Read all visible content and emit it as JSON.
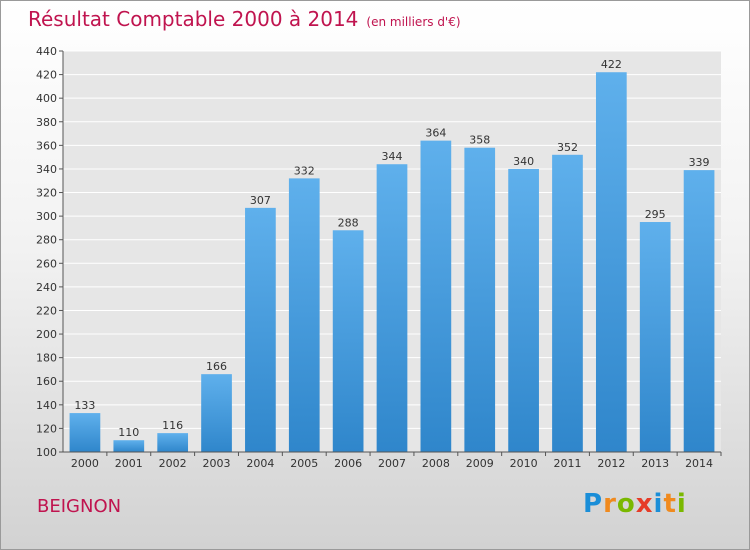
{
  "header": {
    "title": "Résultat Comptable 2000 à 2014",
    "unit": "(en milliers d'€)"
  },
  "footer": {
    "place": "BEIGNON",
    "logo_letters": [
      "P",
      "r",
      "o",
      "x",
      "i",
      "t",
      "i"
    ],
    "logo_colors": [
      "#1a8ed8",
      "#f08a1e",
      "#7ab800",
      "#e63c28",
      "#1a8ed8",
      "#f08a1e",
      "#7ab800"
    ]
  },
  "colors": {
    "bar": "#2f86cb",
    "bar_light": "#5fb0ec",
    "grid": "#ffffff",
    "title": "#c0144f"
  },
  "chart_data": {
    "type": "bar",
    "categories": [
      "2000",
      "2001",
      "2002",
      "2003",
      "2004",
      "2005",
      "2006",
      "2007",
      "2008",
      "2009",
      "2010",
      "2011",
      "2012",
      "2013",
      "2014"
    ],
    "values": [
      133,
      110,
      116,
      166,
      307,
      332,
      288,
      344,
      364,
      358,
      340,
      352,
      422,
      295,
      339
    ],
    "title": "Résultat Comptable 2000 à 2014",
    "ylim": [
      100,
      440
    ],
    "yticks": [
      100,
      120,
      140,
      160,
      180,
      200,
      220,
      240,
      260,
      280,
      300,
      320,
      340,
      360,
      380,
      400,
      420,
      440
    ],
    "grid": true
  }
}
